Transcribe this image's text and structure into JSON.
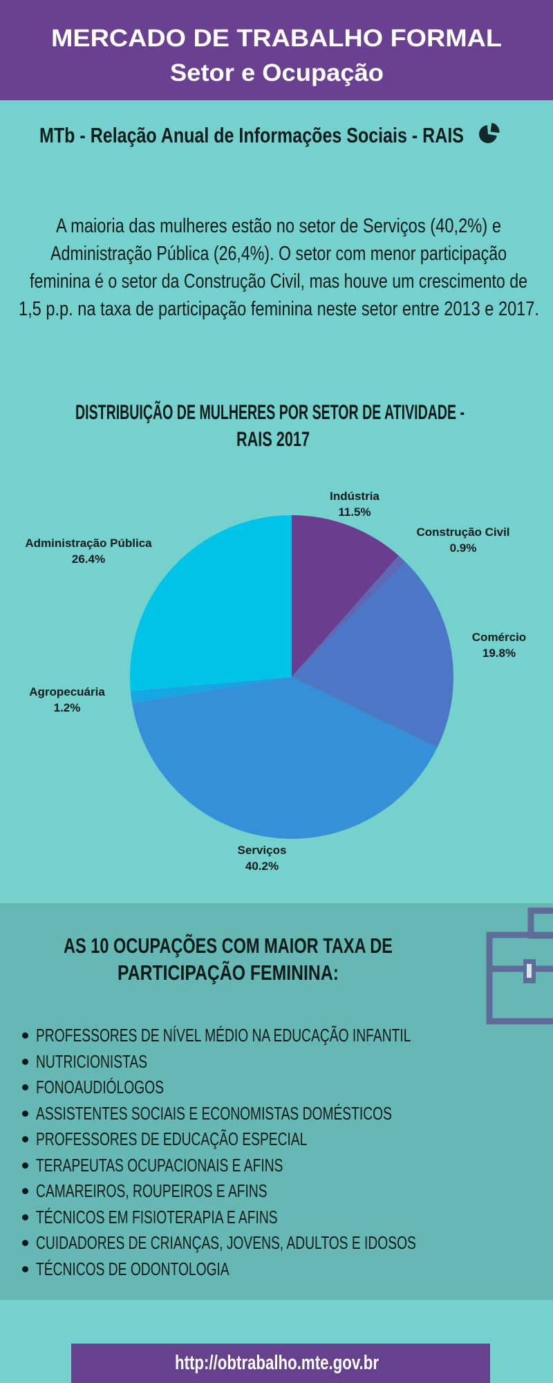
{
  "header": {
    "title_line1": "MERCADO DE TRABALHO FORMAL",
    "title_line2": "Setor e Ocupação",
    "bg_color": "#6a4190"
  },
  "subtitle": {
    "text": "MTb - Relação Anual de Informações Sociais - RAIS",
    "icon": "pie-chart-icon"
  },
  "intro": {
    "lines": [
      "A maioria das mulheres estão no setor de Serviços (40,2%) e",
      "Administração Pública (26,4%). O setor com menor participação",
      "feminina é o setor da Construção Civil, mas houve um crescimento de",
      "1,5 p.p. na taxa de participação feminina neste setor entre 2013 e 2017."
    ]
  },
  "chart": {
    "title_line1": "DISTRIBUIÇÃO DE MULHERES POR SETOR DE ATIVIDADE -",
    "title_line2": "RAIS 2017"
  },
  "chart_data": {
    "type": "pie",
    "title": "DISTRIBUIÇÃO DE MULHERES POR SETOR DE ATIVIDADE - RAIS 2017",
    "start_angle_deg": 0,
    "direction": "clockwise",
    "slices": [
      {
        "label": "Indústria",
        "value": 11.5,
        "color": "#693e8e"
      },
      {
        "label": "Construção Civil",
        "value": 0.9,
        "color": "#5e68b4"
      },
      {
        "label": "Comércio",
        "value": 19.8,
        "color": "#4c77c7"
      },
      {
        "label": "Serviços",
        "value": 40.2,
        "color": "#3590d8"
      },
      {
        "label": "Agropecuária",
        "value": 1.2,
        "color": "#15a5e0"
      },
      {
        "label": "Administração Pública",
        "value": 26.4,
        "color": "#00c3e6"
      }
    ]
  },
  "occupations": {
    "heading_line1": "AS 10 OCUPAÇÕES COM MAIOR TAXA DE",
    "heading_line2": "PARTICIPAÇÃO FEMININA:",
    "items": [
      "PROFESSORES DE NÍVEL MÉDIO NA EDUCAÇÃO INFANTIL",
      "NUTRICIONISTAS",
      "FONOAUDIÓLOGOS",
      "ASSISTENTES SOCIAIS E ECONOMISTAS DOMÉSTICOS",
      "PROFESSORES DE EDUCAÇÃO ESPECIAL",
      "TERAPEUTAS OCUPACIONAIS E AFINS",
      "CAMAREIROS, ROUPEIROS E AFINS",
      "TÉCNICOS EM FISIOTERAPIA E AFINS",
      "CUIDADORES DE CRIANÇAS, JOVENS, ADULTOS E IDOSOS",
      "TÉCNICOS DE ODONTOLOGIA"
    ]
  },
  "footer": {
    "url": "http://obtrabalho.mte.gov.br"
  }
}
